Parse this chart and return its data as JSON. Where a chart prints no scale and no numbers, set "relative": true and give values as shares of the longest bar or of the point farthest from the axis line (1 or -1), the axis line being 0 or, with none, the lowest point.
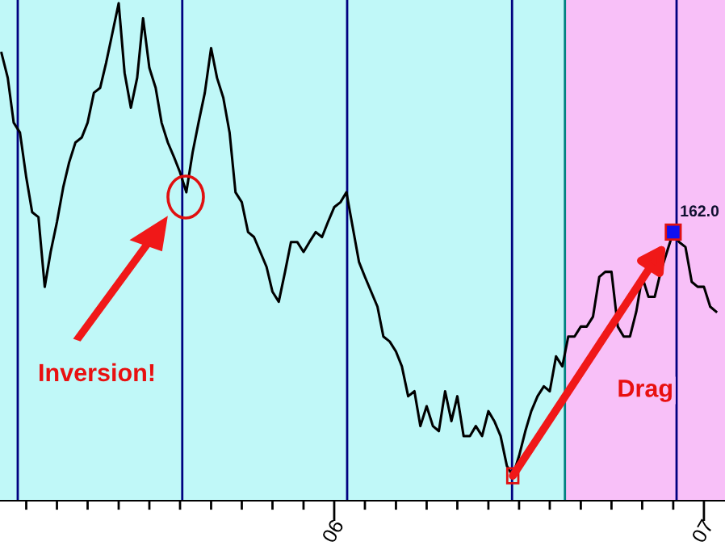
{
  "chart_data": {
    "type": "line",
    "relative": true,
    "grid": false,
    "legend": false,
    "marker": "none",
    "line_style": "solid",
    "xlim": [
      5.096,
      7.057
    ],
    "xticks": [
      {
        "value": 5.167,
        "label": null
      },
      {
        "value": 5.25,
        "label": null
      },
      {
        "value": 5.333,
        "label": null
      },
      {
        "value": 5.417,
        "label": null
      },
      {
        "value": 5.5,
        "label": null
      },
      {
        "value": 5.583,
        "label": null
      },
      {
        "value": 5.667,
        "label": null
      },
      {
        "value": 5.75,
        "label": null
      },
      {
        "value": 5.833,
        "label": null
      },
      {
        "value": 5.917,
        "label": null
      },
      {
        "value": 6,
        "label": "06"
      },
      {
        "value": 6.083,
        "label": null
      },
      {
        "value": 6.167,
        "label": null
      },
      {
        "value": 6.25,
        "label": null
      },
      {
        "value": 6.333,
        "label": null
      },
      {
        "value": 6.417,
        "label": null
      },
      {
        "value": 6.5,
        "label": null
      },
      {
        "value": 6.583,
        "label": null
      },
      {
        "value": 6.667,
        "label": null
      },
      {
        "value": 6.75,
        "label": null
      },
      {
        "value": 6.833,
        "label": null
      },
      {
        "value": 6.917,
        "label": null
      },
      {
        "value": 7,
        "label": "07"
      }
    ],
    "tick_labels": "x",
    "series": [
      {
        "color": "#000000",
        "x": [
          5.1,
          5.117,
          5.133,
          5.15,
          5.167,
          5.183,
          5.2,
          5.217,
          5.233,
          5.25,
          5.267,
          5.283,
          5.3,
          5.317,
          5.333,
          5.35,
          5.367,
          5.383,
          5.4,
          5.417,
          5.433,
          5.45,
          5.467,
          5.483,
          5.5,
          5.517,
          5.533,
          5.55,
          5.567,
          5.583,
          5.6,
          5.617,
          5.633,
          5.65,
          5.667,
          5.683,
          5.7,
          5.717,
          5.733,
          5.75,
          5.767,
          5.783,
          5.8,
          5.817,
          5.833,
          5.85,
          5.867,
          5.883,
          5.9,
          5.917,
          5.933,
          5.95,
          5.967,
          5.983,
          6.0,
          6.017,
          6.033,
          6.05,
          6.067,
          6.083,
          6.1,
          6.117,
          6.133,
          6.15,
          6.167,
          6.183,
          6.2,
          6.217,
          6.233,
          6.25,
          6.267,
          6.283,
          6.3,
          6.317,
          6.333,
          6.35,
          6.367,
          6.383,
          6.4,
          6.417,
          6.433,
          6.45,
          6.467,
          6.483,
          6.5,
          6.517,
          6.533,
          6.55,
          6.567,
          6.583,
          6.6,
          6.617,
          6.633,
          6.65,
          6.667,
          6.683,
          6.7,
          6.717,
          6.733,
          6.75,
          6.767,
          6.783,
          6.8,
          6.817,
          6.833,
          6.85,
          6.867,
          6.883,
          6.9,
          6.917,
          6.933,
          6.95,
          6.967,
          6.983,
          7.0,
          7.017,
          7.033
        ],
        "values": [
          0.9,
          0.85,
          0.76,
          0.74,
          0.65,
          0.58,
          0.57,
          0.43,
          0.5,
          0.56,
          0.63,
          0.68,
          0.72,
          0.73,
          0.76,
          0.82,
          0.83,
          0.88,
          0.94,
          1.0,
          0.86,
          0.79,
          0.85,
          0.97,
          0.87,
          0.83,
          0.76,
          0.72,
          0.69,
          0.66,
          0.62,
          0.7,
          0.76,
          0.82,
          0.91,
          0.85,
          0.81,
          0.74,
          0.62,
          0.6,
          0.54,
          0.53,
          0.5,
          0.47,
          0.42,
          0.4,
          0.46,
          0.52,
          0.52,
          0.5,
          0.52,
          0.54,
          0.53,
          0.56,
          0.59,
          0.6,
          0.62,
          0.55,
          0.48,
          0.45,
          0.42,
          0.39,
          0.33,
          0.32,
          0.3,
          0.27,
          0.21,
          0.22,
          0.15,
          0.19,
          0.15,
          0.14,
          0.22,
          0.16,
          0.21,
          0.13,
          0.13,
          0.15,
          0.13,
          0.18,
          0.16,
          0.13,
          0.07,
          0.05,
          0.09,
          0.14,
          0.18,
          0.21,
          0.23,
          0.22,
          0.29,
          0.27,
          0.33,
          0.33,
          0.35,
          0.35,
          0.37,
          0.45,
          0.46,
          0.46,
          0.35,
          0.33,
          0.33,
          0.38,
          0.45,
          0.41,
          0.41,
          0.46,
          0.5,
          0.54,
          0.52,
          0.51,
          0.44,
          0.43,
          0.43,
          0.39,
          0.38
        ]
      }
    ],
    "bands": [
      {
        "axis": "x",
        "from": 5.096,
        "to": 6.624,
        "color": "#c0f8f8"
      },
      {
        "axis": "x",
        "from": 6.624,
        "to": 7.057,
        "color": "#f8c0f8"
      }
    ],
    "ref_lines": [
      {
        "axis": "x",
        "value": 5.144,
        "color": "#000080"
      },
      {
        "axis": "x",
        "value": 5.589,
        "color": "#000080"
      },
      {
        "axis": "x",
        "value": 6.035,
        "color": "#000080"
      },
      {
        "axis": "x",
        "value": 6.481,
        "color": "#000080"
      },
      {
        "axis": "x",
        "value": 6.624,
        "color": "#008080"
      },
      {
        "axis": "x",
        "value": 6.926,
        "color": "#000080"
      }
    ],
    "annotations": [
      "Inversion!",
      {
        "text": "162.0",
        "x": 6.917,
        "y": 0.54
      },
      "Drag"
    ]
  }
}
